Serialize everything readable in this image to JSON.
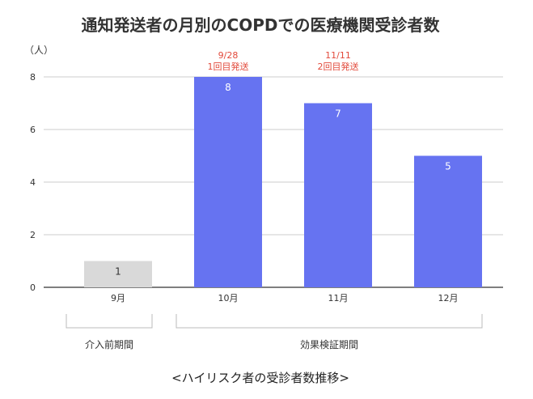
{
  "chart_data": {
    "type": "bar",
    "title": "通知発送者の月別のCOPDでの医療機関受診者数",
    "ylabel": "（人）",
    "xlabel": "",
    "categories": [
      "9月",
      "10月",
      "11月",
      "12月"
    ],
    "values": [
      1,
      8,
      7,
      5
    ],
    "ylim": [
      0,
      8
    ],
    "yticks": [
      0,
      2,
      4,
      6,
      8
    ],
    "grid": true,
    "legend": "none",
    "colors": {
      "pre_period_bar": "#d9d9d9",
      "effect_period_bar": "#6673f1",
      "annotation": "#e24a3b",
      "label_on_dark": "#ffffff",
      "label_on_light": "#333333"
    },
    "annotations": [
      {
        "category": "10月",
        "lines": [
          "9/28",
          "1回目発送"
        ]
      },
      {
        "category": "11月",
        "lines": [
          "11/11",
          "2回目発送"
        ]
      }
    ],
    "periods": [
      {
        "label": "介入前期間",
        "from": "9月",
        "to": "9月"
      },
      {
        "label": "効果検証期間",
        "from": "10月",
        "to": "12月"
      }
    ]
  },
  "caption": "<ハイリスク者の受診者数推移>"
}
